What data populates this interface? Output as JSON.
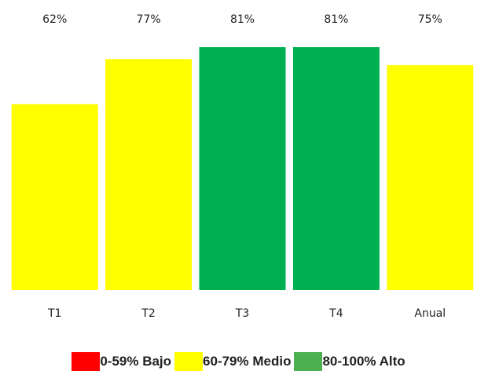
{
  "chart_data": {
    "type": "bar",
    "categories": [
      "T1",
      "T2",
      "T3",
      "T4",
      "Anual"
    ],
    "values": [
      62,
      77,
      81,
      81,
      75
    ],
    "value_labels": [
      "62%",
      "77%",
      "81%",
      "81%",
      "75%"
    ],
    "bar_colors": [
      "#ffff00",
      "#ffff00",
      "#00b050",
      "#00b050",
      "#ffff00"
    ],
    "ylim": [
      0,
      81
    ],
    "grid": false,
    "legend": {
      "placement": "bottom",
      "items": [
        {
          "label": "0-59% Bajo",
          "color": "#ff0000"
        },
        {
          "label": "60-79% Medio",
          "color": "#ffff00"
        },
        {
          "label": "80-100% Alto",
          "color": "#4caf50"
        }
      ]
    }
  }
}
